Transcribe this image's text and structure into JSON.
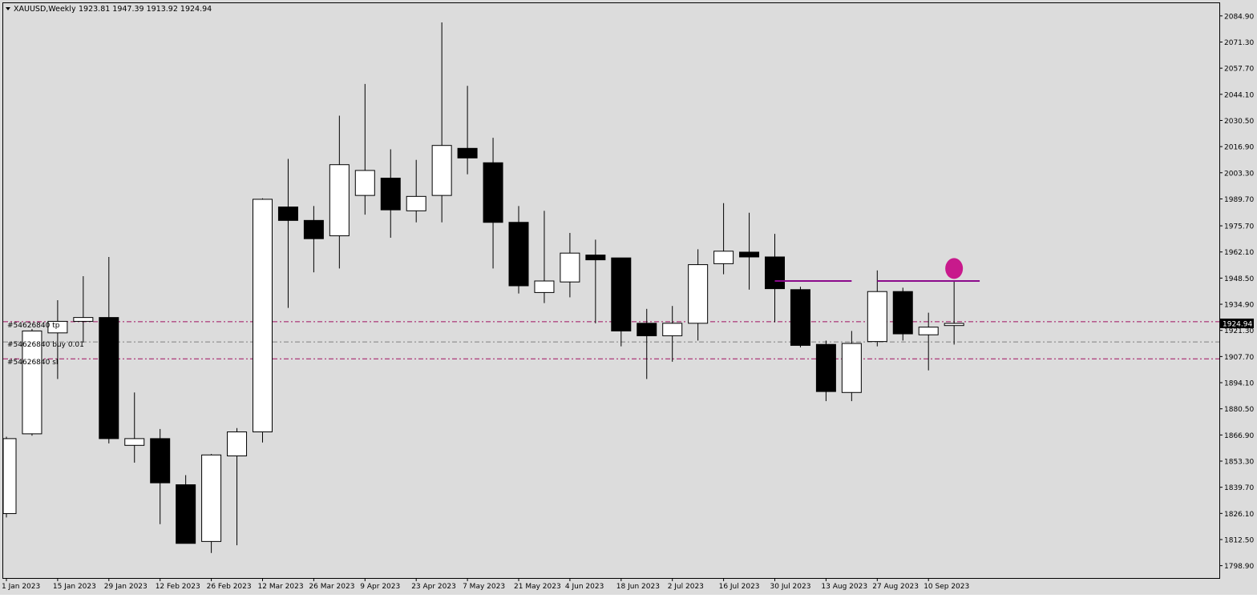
{
  "header": {
    "symbol_label": "XAUUSD,Weekly",
    "ohlc_text": "1923.81 1947.39 1913.92 1924.94"
  },
  "orders": {
    "tp_label": "#54626840 tp",
    "entry_label": "#54626840 buy 0.01",
    "sl_label": "#54626840 sl"
  },
  "colors": {
    "background": "#dcdcdc",
    "axis": "#000000",
    "bull_fill": "#ffffff",
    "bear_fill": "#000000",
    "order_line": "#a01060",
    "entry_line": "#808080",
    "resistance_line": "#8b0a8b",
    "marker": "#c81a8c",
    "price_tag_bg": "#000000",
    "price_tag_text": "#ffffff"
  },
  "chart_data": {
    "type": "candlestick",
    "title": "XAUUSD,Weekly",
    "ylim": [
      1792.5,
      2091.5
    ],
    "y_ticks": [
      1798.9,
      1812.5,
      1826.1,
      1839.7,
      1853.3,
      1866.9,
      1880.5,
      1894.1,
      1907.7,
      1921.3,
      1934.9,
      1948.5,
      1962.1,
      1975.7,
      1989.7,
      2003.3,
      2016.9,
      2030.5,
      2044.1,
      2057.7,
      2071.3,
      2084.9
    ],
    "y_tick_labels": [
      "1798.90",
      "1812.50",
      "1826.10",
      "1839.70",
      "1853.30",
      "1866.90",
      "1880.50",
      "1894.10",
      "1907.70",
      "1921.30",
      "1934.90",
      "1948.50",
      "1962.10",
      "1975.70",
      "1989.70",
      "2003.30",
      "2016.90",
      "2030.50",
      "2044.10",
      "2057.70",
      "2071.30",
      "2084.90"
    ],
    "x_labels": [
      {
        "index": 0,
        "label": "1 Jan 2023"
      },
      {
        "index": 2,
        "label": "15 Jan 2023"
      },
      {
        "index": 4,
        "label": "29 Jan 2023"
      },
      {
        "index": 6,
        "label": "12 Feb 2023"
      },
      {
        "index": 8,
        "label": "26 Feb 2023"
      },
      {
        "index": 10,
        "label": "12 Mar 2023"
      },
      {
        "index": 12,
        "label": "26 Mar 2023"
      },
      {
        "index": 14,
        "label": "9 Apr 2023"
      },
      {
        "index": 16,
        "label": "23 Apr 2023"
      },
      {
        "index": 18,
        "label": "7 May 2023"
      },
      {
        "index": 20,
        "label": "21 May 2023"
      },
      {
        "index": 22,
        "label": "4 Jun 2023"
      },
      {
        "index": 24,
        "label": "18 Jun 2023"
      },
      {
        "index": 26,
        "label": "2 Jul 2023"
      },
      {
        "index": 28,
        "label": "16 Jul 2023"
      },
      {
        "index": 30,
        "label": "30 Jul 2023"
      },
      {
        "index": 32,
        "label": "13 Aug 2023"
      },
      {
        "index": 34,
        "label": "27 Aug 2023"
      },
      {
        "index": 36,
        "label": "10 Sep 2023"
      }
    ],
    "candles": [
      {
        "date": "1 Jan 2023",
        "open": 1826.0,
        "high": 1866.0,
        "low": 1824.0,
        "close": 1865.0
      },
      {
        "date": "8 Jan 2023",
        "open": 1867.5,
        "high": 1922.0,
        "low": 1866.5,
        "close": 1921.0
      },
      {
        "date": "15 Jan 2023",
        "open": 1920.0,
        "high": 1937.0,
        "low": 1896.0,
        "close": 1926.0
      },
      {
        "date": "22 Jan 2023",
        "open": 1926.0,
        "high": 1949.5,
        "low": 1915.0,
        "close": 1928.0
      },
      {
        "date": "29 Jan 2023",
        "open": 1928.0,
        "high": 1959.5,
        "low": 1862.5,
        "close": 1865.0
      },
      {
        "date": "5 Feb 2023",
        "open": 1861.5,
        "high": 1889.0,
        "low": 1852.5,
        "close": 1865.0
      },
      {
        "date": "12 Feb 2023",
        "open": 1865.0,
        "high": 1870.0,
        "low": 1820.5,
        "close": 1842.0
      },
      {
        "date": "19 Feb 2023",
        "open": 1841.0,
        "high": 1846.0,
        "low": 1811.5,
        "close": 1810.5
      },
      {
        "date": "26 Feb 2023",
        "open": 1811.5,
        "high": 1857.0,
        "low": 1805.5,
        "close": 1856.5
      },
      {
        "date": "5 Mar 2023",
        "open": 1856.0,
        "high": 1870.5,
        "low": 1809.5,
        "close": 1868.5
      },
      {
        "date": "12 Mar 2023",
        "open": 1868.5,
        "high": 1990.0,
        "low": 1863.0,
        "close": 1989.5
      },
      {
        "date": "19 Mar 2023",
        "open": 1985.5,
        "high": 2010.5,
        "low": 1933.0,
        "close": 1978.5
      },
      {
        "date": "26 Mar 2023",
        "open": 1978.5,
        "high": 1986.0,
        "low": 1951.5,
        "close": 1969.0
      },
      {
        "date": "2 Apr 2023",
        "open": 1970.5,
        "high": 2033.0,
        "low": 1953.5,
        "close": 2007.5
      },
      {
        "date": "9 Apr 2023",
        "open": 1991.5,
        "high": 2049.5,
        "low": 1981.5,
        "close": 2004.5
      },
      {
        "date": "16 Apr 2023",
        "open": 2000.5,
        "high": 2015.5,
        "low": 1969.5,
        "close": 1984.0
      },
      {
        "date": "23 Apr 2023",
        "open": 1983.5,
        "high": 2010.0,
        "low": 1977.5,
        "close": 1991.0
      },
      {
        "date": "30 Apr 2023",
        "open": 1991.5,
        "high": 2081.5,
        "low": 1977.5,
        "close": 2017.5
      },
      {
        "date": "7 May 2023",
        "open": 2016.0,
        "high": 2048.5,
        "low": 2002.5,
        "close": 2011.0
      },
      {
        "date": "14 May 2023",
        "open": 2008.5,
        "high": 2021.5,
        "low": 1953.5,
        "close": 1977.5
      },
      {
        "date": "21 May 2023",
        "open": 1977.5,
        "high": 1986.0,
        "low": 1940.5,
        "close": 1944.5
      },
      {
        "date": "28 May 2023",
        "open": 1941.0,
        "high": 1983.5,
        "low": 1935.5,
        "close": 1947.0
      },
      {
        "date": "4 Jun 2023",
        "open": 1946.5,
        "high": 1972.0,
        "low": 1938.5,
        "close": 1961.5
      },
      {
        "date": "11 Jun 2023",
        "open": 1960.5,
        "high": 1968.5,
        "low": 1925.0,
        "close": 1958.0
      },
      {
        "date": "18 Jun 2023",
        "open": 1959.0,
        "high": 1959.0,
        "low": 1913.0,
        "close": 1921.0
      },
      {
        "date": "25 Jun 2023",
        "open": 1925.0,
        "high": 1932.5,
        "low": 1896.0,
        "close": 1918.5
      },
      {
        "date": "2 Jul 2023",
        "open": 1918.5,
        "high": 1934.0,
        "low": 1905.0,
        "close": 1925.0
      },
      {
        "date": "9 Jul 2023",
        "open": 1925.0,
        "high": 1963.5,
        "low": 1916.0,
        "close": 1955.5
      },
      {
        "date": "16 Jul 2023",
        "open": 1956.0,
        "high": 1987.5,
        "low": 1950.5,
        "close": 1962.5
      },
      {
        "date": "23 Jul 2023",
        "open": 1962.0,
        "high": 1982.5,
        "low": 1942.5,
        "close": 1959.5
      },
      {
        "date": "30 Jul 2023",
        "open": 1959.5,
        "high": 1971.5,
        "low": 1925.5,
        "close": 1943.0
      },
      {
        "date": "6 Aug 2023",
        "open": 1942.5,
        "high": 1944.0,
        "low": 1912.5,
        "close": 1913.5
      },
      {
        "date": "13 Aug 2023",
        "open": 1914.0,
        "high": 1916.0,
        "low": 1884.5,
        "close": 1889.5
      },
      {
        "date": "20 Aug 2023",
        "open": 1889.0,
        "high": 1921.0,
        "low": 1884.5,
        "close": 1914.5
      },
      {
        "date": "27 Aug 2023",
        "open": 1915.5,
        "high": 1952.5,
        "low": 1913.0,
        "close": 1941.5
      },
      {
        "date": "3 Sep 2023",
        "open": 1941.5,
        "high": 1943.5,
        "low": 1916.0,
        "close": 1919.5
      },
      {
        "date": "10 Sep 2023",
        "open": 1919.0,
        "high": 1930.5,
        "low": 1900.5,
        "close": 1923.0
      },
      {
        "date": "17 Sep 2023",
        "open": 1923.81,
        "high": 1947.39,
        "low": 1913.92,
        "close": 1924.94
      }
    ],
    "order_levels": {
      "tp": 1925.8,
      "entry": 1915.3,
      "sl": 1906.5
    },
    "resistance_lines": [
      {
        "from_index": 30,
        "to_index": 33,
        "price": 1947.0
      },
      {
        "from_index": 34,
        "to_index": 38,
        "price": 1947.0
      }
    ],
    "marker": {
      "index": 37,
      "price": 1953.5
    },
    "current_price": 1924.94,
    "current_price_label": "1924.94"
  }
}
